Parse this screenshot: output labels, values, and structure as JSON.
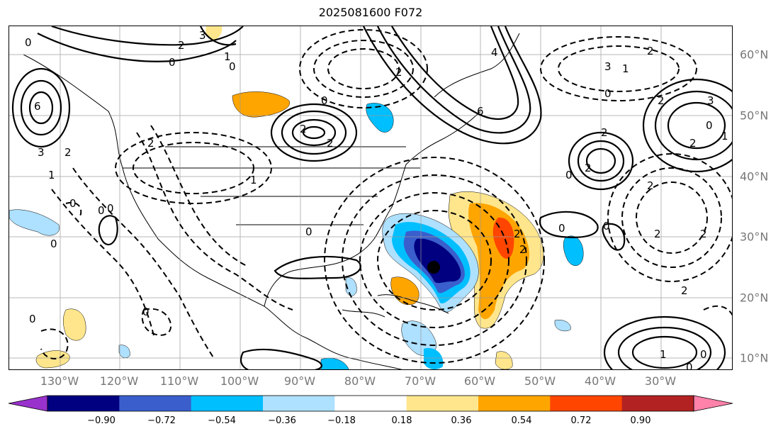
{
  "title": "2025081600 F072",
  "axes": {
    "lon_labels": [
      "130°W",
      "120°W",
      "110°W",
      "100°W",
      "90°W",
      "80°W",
      "70°W",
      "60°W",
      "50°W",
      "40°W",
      "30°W"
    ],
    "lat_labels": [
      "60°N",
      "50°N",
      "40°N",
      "30°N",
      "20°N",
      "10°N"
    ]
  },
  "contour_labels": [
    "0",
    "2",
    "3",
    "1",
    "0",
    "6",
    "3",
    "2",
    "1",
    "0",
    "0",
    "2",
    "1",
    "2",
    "0",
    "0",
    "2",
    "2",
    "4",
    "6",
    "3",
    "2",
    "0",
    "2",
    "1",
    "3",
    "2",
    "1",
    "0",
    "2",
    "2",
    "0",
    "2",
    "2",
    "0",
    "0",
    "0",
    "0",
    "0",
    "0",
    "2",
    "2",
    "0",
    "2",
    "1",
    "0",
    "2",
    "0"
  ],
  "colorbar": {
    "ticks": [
      "−0.90",
      "−0.72",
      "−0.54",
      "−0.36",
      "−0.18",
      "0.18",
      "0.36",
      "0.54",
      "0.72",
      "0.90"
    ],
    "colors": [
      "#9932cc",
      "#000080",
      "#3a5fcd",
      "#00bfff",
      "#aee0ff",
      "#ffffff",
      "#ffe68c",
      "#ffa500",
      "#ff4500",
      "#b22222",
      "#ff82ab"
    ]
  },
  "storm_marker": {
    "lon": -70,
    "lat": 25
  }
}
